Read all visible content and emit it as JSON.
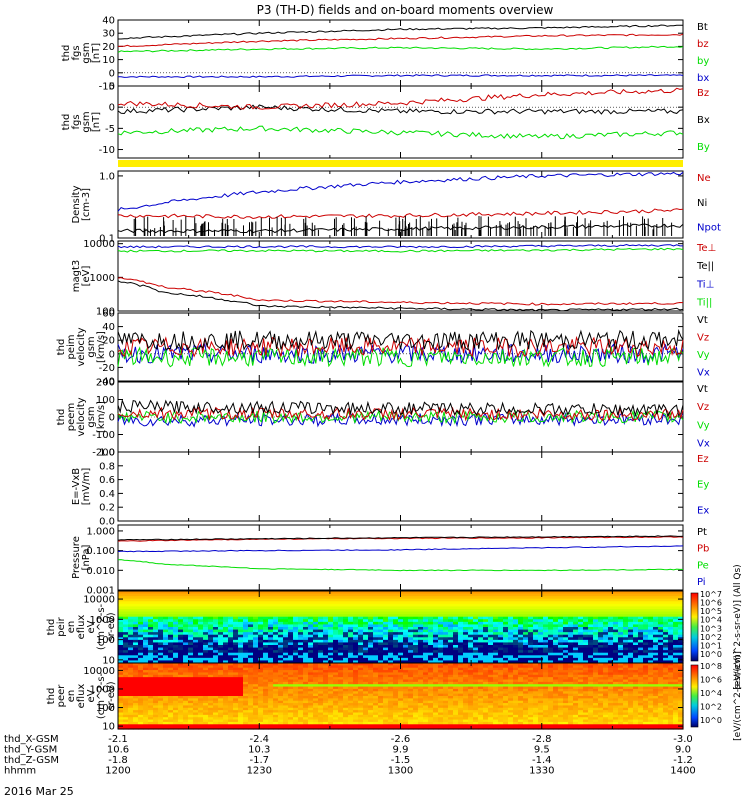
{
  "title": "P3 (TH-D) fields and on-board moments overview",
  "date_label": "2016 Mar 25",
  "time_axis": {
    "rows": [
      {
        "label": "thd_X-GSM",
        "values": [
          "-2.1",
          "-2.4",
          "-2.6",
          "-2.8",
          "-3.0"
        ]
      },
      {
        "label": "thd_Y-GSM",
        "values": [
          "10.6",
          "10.3",
          "9.9",
          "9.5",
          "9.0"
        ]
      },
      {
        "label": "thd_Z-GSM",
        "values": [
          "-1.8",
          "-1.7",
          "-1.5",
          "-1.4",
          "-1.2"
        ]
      },
      {
        "label": "hhmm",
        "values": [
          "1200",
          "1230",
          "1300",
          "1330",
          "1400"
        ]
      }
    ]
  },
  "colors": {
    "black": "#000000",
    "red": "#cc0000",
    "green": "#00dd00",
    "blue": "#0000cc",
    "yellow": "#ffee00"
  },
  "chart_data": [
    {
      "type": "line",
      "id": "fgs_spin",
      "ylabel": [
        "thd",
        "fgs",
        "gsm",
        "[nT]"
      ],
      "ylim": [
        -10,
        40
      ],
      "yticks": [
        "40",
        "30",
        "20",
        "10",
        "0",
        "-10"
      ],
      "legend": [
        "Bt",
        "bz",
        "by",
        "bx"
      ],
      "series": [
        {
          "name": "Bt",
          "color": "#000000",
          "x": [
            1200,
            1230,
            1300,
            1330,
            1400
          ],
          "values": [
            26,
            30,
            33,
            34,
            36
          ]
        },
        {
          "name": "bz",
          "color": "#cc0000",
          "x": [
            1200,
            1230,
            1300,
            1330,
            1400
          ],
          "values": [
            20,
            24,
            26,
            28,
            29
          ]
        },
        {
          "name": "by",
          "color": "#00dd00",
          "x": [
            1200,
            1230,
            1300,
            1330,
            1400
          ],
          "values": [
            16,
            18,
            19,
            18,
            20
          ]
        },
        {
          "name": "bx",
          "color": "#0000cc",
          "x": [
            1200,
            1230,
            1300,
            1330,
            1400
          ],
          "values": [
            -3,
            -3,
            -2,
            -2,
            -2
          ]
        }
      ]
    },
    {
      "type": "line",
      "id": "fgs_dsl",
      "ylabel": [
        "thd",
        "fgs",
        "gsm",
        "[nT]"
      ],
      "ylim": [
        -12,
        5
      ],
      "yticks": [
        "5",
        "0",
        "-5",
        "-10"
      ],
      "legend": [
        "Bz",
        "Bx",
        "By"
      ],
      "series": [
        {
          "name": "Bz",
          "color": "#cc0000",
          "x": [
            1200,
            1230,
            1300,
            1330,
            1400
          ],
          "values": [
            1,
            0,
            1,
            3,
            4
          ]
        },
        {
          "name": "Bx",
          "color": "#000000",
          "x": [
            1200,
            1230,
            1300,
            1330,
            1400
          ],
          "values": [
            -1,
            0,
            -1,
            -1,
            -1
          ]
        },
        {
          "name": "By",
          "color": "#00dd00",
          "x": [
            1200,
            1230,
            1300,
            1330,
            1400
          ],
          "values": [
            -6,
            -5,
            -6,
            -7,
            -6
          ]
        }
      ]
    },
    {
      "type": "line",
      "id": "density",
      "log": true,
      "ylabel": [
        "Density",
        "[cm-3]"
      ],
      "ylim": [
        0.1,
        1.2
      ],
      "yticks": [
        "1.0",
        "0.1"
      ],
      "legend": [
        "Ne",
        "Ni",
        "Npot"
      ],
      "series": [
        {
          "name": "Ne",
          "color": "#cc0000",
          "x": [
            1200,
            1230,
            1300,
            1330,
            1400
          ],
          "values": [
            0.23,
            0.22,
            0.23,
            0.25,
            0.28
          ]
        },
        {
          "name": "Ni",
          "color": "#000000",
          "x": [
            1200,
            1230,
            1300,
            1330,
            1400
          ],
          "values": [
            0.13,
            0.13,
            0.14,
            0.15,
            0.16
          ]
        },
        {
          "name": "Npot",
          "color": "#0000cc",
          "x": [
            1200,
            1230,
            1300,
            1330,
            1400
          ],
          "values": [
            0.28,
            0.55,
            0.8,
            1.0,
            1.1
          ]
        }
      ]
    },
    {
      "type": "line",
      "id": "temperature",
      "log": true,
      "ylabel": [
        "magt3",
        "[eV]"
      ],
      "ylim": [
        100,
        12000
      ],
      "yticks": [
        "10000",
        "1000",
        "100"
      ],
      "legend": [
        "Te⊥",
        "Te||",
        "Ti⊥",
        "Ti||"
      ],
      "series": [
        {
          "name": "Te⊥",
          "color": "#cc0000",
          "x": [
            1200,
            1210,
            1230,
            1300,
            1330,
            1400
          ],
          "values": [
            1000,
            500,
            210,
            180,
            160,
            170
          ]
        },
        {
          "name": "Te||",
          "color": "#000000",
          "x": [
            1200,
            1210,
            1230,
            1300,
            1330,
            1400
          ],
          "values": [
            800,
            350,
            140,
            120,
            105,
            115
          ]
        },
        {
          "name": "Ti⊥",
          "color": "#0000cc",
          "x": [
            1200,
            1230,
            1300,
            1330,
            1400
          ],
          "values": [
            8000,
            8200,
            8000,
            8500,
            9000
          ]
        },
        {
          "name": "Ti||",
          "color": "#00dd00",
          "x": [
            1200,
            1230,
            1300,
            1330,
            1400
          ],
          "values": [
            6000,
            6200,
            6000,
            6400,
            7000
          ]
        }
      ]
    },
    {
      "type": "line",
      "id": "peim_velocity",
      "ylabel": [
        "thd",
        "peim",
        "velocity",
        "gsm",
        "[km/s]"
      ],
      "ylim": [
        -40,
        60
      ],
      "yticks": [
        "60",
        "40",
        "20",
        "0",
        "-20",
        "-40"
      ],
      "legend": [
        "Vt",
        "Vz",
        "Vy",
        "Vx"
      ],
      "series": [
        {
          "name": "Vt",
          "color": "#000000",
          "x": [
            1200,
            1400
          ],
          "values": [
            20,
            20
          ]
        },
        {
          "name": "Vz",
          "color": "#cc0000",
          "x": [
            1200,
            1400
          ],
          "values": [
            10,
            10
          ]
        },
        {
          "name": "Vy",
          "color": "#00dd00",
          "x": [
            1200,
            1400
          ],
          "values": [
            -5,
            -5
          ]
        },
        {
          "name": "Vx",
          "color": "#0000cc",
          "x": [
            1200,
            1400
          ],
          "values": [
            0,
            0
          ]
        }
      ]
    },
    {
      "type": "line",
      "id": "peem_velocity",
      "ylabel": [
        "thd",
        "peem",
        "velocity",
        "gsm",
        "[km/s]"
      ],
      "ylim": [
        -200,
        200
      ],
      "yticks": [
        "200",
        "100",
        "0",
        "-100",
        "-200"
      ],
      "legend": [
        "Vt",
        "Vz",
        "Vy",
        "Vx"
      ],
      "series": [
        {
          "name": "Vt",
          "color": "#000000",
          "x": [
            1200,
            1400
          ],
          "values": [
            60,
            40
          ]
        },
        {
          "name": "Vz",
          "color": "#cc0000",
          "x": [
            1200,
            1400
          ],
          "values": [
            20,
            15
          ]
        },
        {
          "name": "Vy",
          "color": "#00dd00",
          "x": [
            1200,
            1400
          ],
          "values": [
            0,
            0
          ]
        },
        {
          "name": "Vx",
          "color": "#0000cc",
          "x": [
            1200,
            1400
          ],
          "values": [
            -20,
            -10
          ]
        }
      ]
    },
    {
      "type": "line",
      "id": "efield",
      "ylabel": [
        "E=-VxB",
        "[mV/m]"
      ],
      "ylim": [
        0,
        1
      ],
      "yticks": [
        "1.0",
        "0.8",
        "0.6",
        "0.4",
        "0.2",
        "0.0"
      ],
      "legend": [
        "Ez",
        "Ey",
        "Ex"
      ],
      "series": []
    },
    {
      "type": "line",
      "id": "pressure",
      "log": true,
      "ylabel": [
        "Pressure",
        "[nPa]"
      ],
      "ylim": [
        0.001,
        2
      ],
      "yticks": [
        "1.000",
        "0.100",
        "0.010",
        "0.001"
      ],
      "legend": [
        "Pt",
        "Pb",
        "Pe",
        "Pi"
      ],
      "series": [
        {
          "name": "Pt",
          "color": "#000000",
          "x": [
            1200,
            1230,
            1300,
            1330,
            1400
          ],
          "values": [
            0.35,
            0.4,
            0.45,
            0.5,
            0.55
          ]
        },
        {
          "name": "Pb",
          "color": "#cc0000",
          "x": [
            1200,
            1230,
            1300,
            1330,
            1400
          ],
          "values": [
            0.3,
            0.38,
            0.42,
            0.45,
            0.5
          ]
        },
        {
          "name": "Pe",
          "color": "#00dd00",
          "x": [
            1200,
            1210,
            1230,
            1300,
            1330,
            1400
          ],
          "values": [
            0.035,
            0.02,
            0.012,
            0.01,
            0.01,
            0.011
          ]
        },
        {
          "name": "Pi",
          "color": "#0000cc",
          "x": [
            1200,
            1230,
            1300,
            1330,
            1400
          ],
          "values": [
            0.09,
            0.1,
            0.11,
            0.14,
            0.17
          ]
        }
      ]
    },
    {
      "type": "heatmap",
      "id": "peir_eflux",
      "ylabel": [
        "thd",
        "peir",
        "en",
        "eflux",
        "eV",
        "(cm^2-s-",
        "sr-eV)"
      ],
      "ylim": [
        7,
        25000
      ],
      "yticks": [
        "10000",
        "1000",
        "100",
        "10"
      ],
      "colorbar_ticks": [
        "10^7",
        "10^6",
        "10^5",
        "10^4",
        "10^3",
        "10^2",
        "10^1",
        "10^0"
      ],
      "colorbar_label": "[eV/(cm^2-s-sr-eV)] (All Qs)"
    },
    {
      "type": "heatmap",
      "id": "peer_eflux",
      "ylabel": [
        "thd",
        "peer",
        "en",
        "eflux",
        "eV",
        "(cm^2-s-",
        "sr-eV)"
      ],
      "ylim": [
        7,
        25000
      ],
      "yticks": [
        "10000",
        "1000",
        "100",
        "10"
      ],
      "colorbar_ticks": [
        "10^8",
        "10^6",
        "10^4",
        "10^2",
        "10^0"
      ],
      "colorbar_label": "[eV/(cm^2-s-sr-eV)]"
    }
  ]
}
